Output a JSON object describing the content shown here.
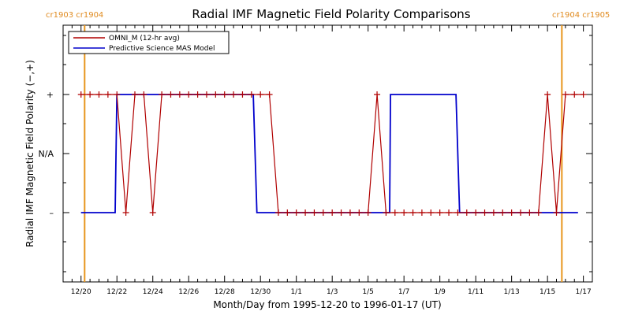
{
  "chart_data": {
    "type": "line",
    "title": "Radial IMF Magnetic Field Polarity Comparisons",
    "xlabel": "Month/Day from 1995-12-20 to 1996-01-17 (UT)",
    "ylabel": "Radial IMF Magnetic Field Polarity (−,+)",
    "x_range": [
      "1995-12-20",
      "1996-01-17"
    ],
    "x_tick_labels": [
      "12/20",
      "12/22",
      "12/24",
      "12/26",
      "12/28",
      "12/30",
      "1/1",
      "1/3",
      "1/5",
      "1/7",
      "1/9",
      "1/11",
      "1/13",
      "1/15",
      "1/17"
    ],
    "y_categories": [
      "–",
      "N/A",
      "+"
    ],
    "y_values_key": {
      "-1": "–",
      "0": "N/A",
      "1": "+"
    },
    "carrington_markers": [
      {
        "date": "1995-12-20.2",
        "label": "cr1903 cr1904"
      },
      {
        "date": "1996-01-16.8",
        "label": "cr1904 cr1905"
      }
    ],
    "marker_color": "#e8961e",
    "legend_position": "top-left",
    "series": [
      {
        "name": "OMNI_M (12-hr avg)",
        "color": "#b00000",
        "marker": "plus",
        "x": [
          20.0,
          20.5,
          21.0,
          21.5,
          22.0,
          22.5,
          23.0,
          23.5,
          24.0,
          24.5,
          25.0,
          25.5,
          26.0,
          26.5,
          27.0,
          27.5,
          28.0,
          28.5,
          29.0,
          29.5,
          30.0,
          30.5,
          31.0,
          31.5,
          32.0,
          32.5,
          33.0,
          33.5,
          34.0,
          34.5,
          35.0,
          35.5,
          36.0,
          36.5,
          37.0,
          37.5,
          38.0,
          38.5,
          39.0,
          39.5,
          40.0,
          40.5,
          41.0,
          41.5,
          42.0,
          42.5,
          43.0,
          43.5,
          44.0,
          44.5,
          45.0,
          45.5,
          46.0,
          46.5,
          47.0,
          47.5,
          48.0
        ],
        "values": [
          1,
          1,
          1,
          1,
          1,
          -1,
          1,
          1,
          -1,
          1,
          1,
          1,
          1,
          1,
          1,
          1,
          1,
          1,
          1,
          1,
          1,
          1,
          -1,
          -1,
          -1,
          -1,
          -1,
          -1,
          -1,
          -1,
          -1,
          -1,
          -1,
          1,
          -1,
          -1,
          -1,
          -1,
          -1,
          -1,
          -1,
          -1,
          -1,
          -1,
          -1,
          -1,
          -1,
          -1,
          -1,
          -1,
          -1,
          -1,
          1,
          -1,
          1,
          1,
          1
        ],
        "values_tail_note": ""
      },
      {
        "name": "Predictive Science MAS Model",
        "color": "#0000cc",
        "steps": [
          {
            "x": 20.0,
            "y": -1
          },
          {
            "x": 21.9,
            "y": -1
          },
          {
            "x": 22.0,
            "y": 1
          },
          {
            "x": 29.6,
            "y": 1
          },
          {
            "x": 29.8,
            "y": -1
          },
          {
            "x": 37.2,
            "y": -1
          },
          {
            "x": 37.25,
            "y": 1
          },
          {
            "x": 40.9,
            "y": 1
          },
          {
            "x": 41.1,
            "y": -1
          },
          {
            "x": 47.7,
            "y": -1
          }
        ]
      }
    ],
    "grid": false
  }
}
